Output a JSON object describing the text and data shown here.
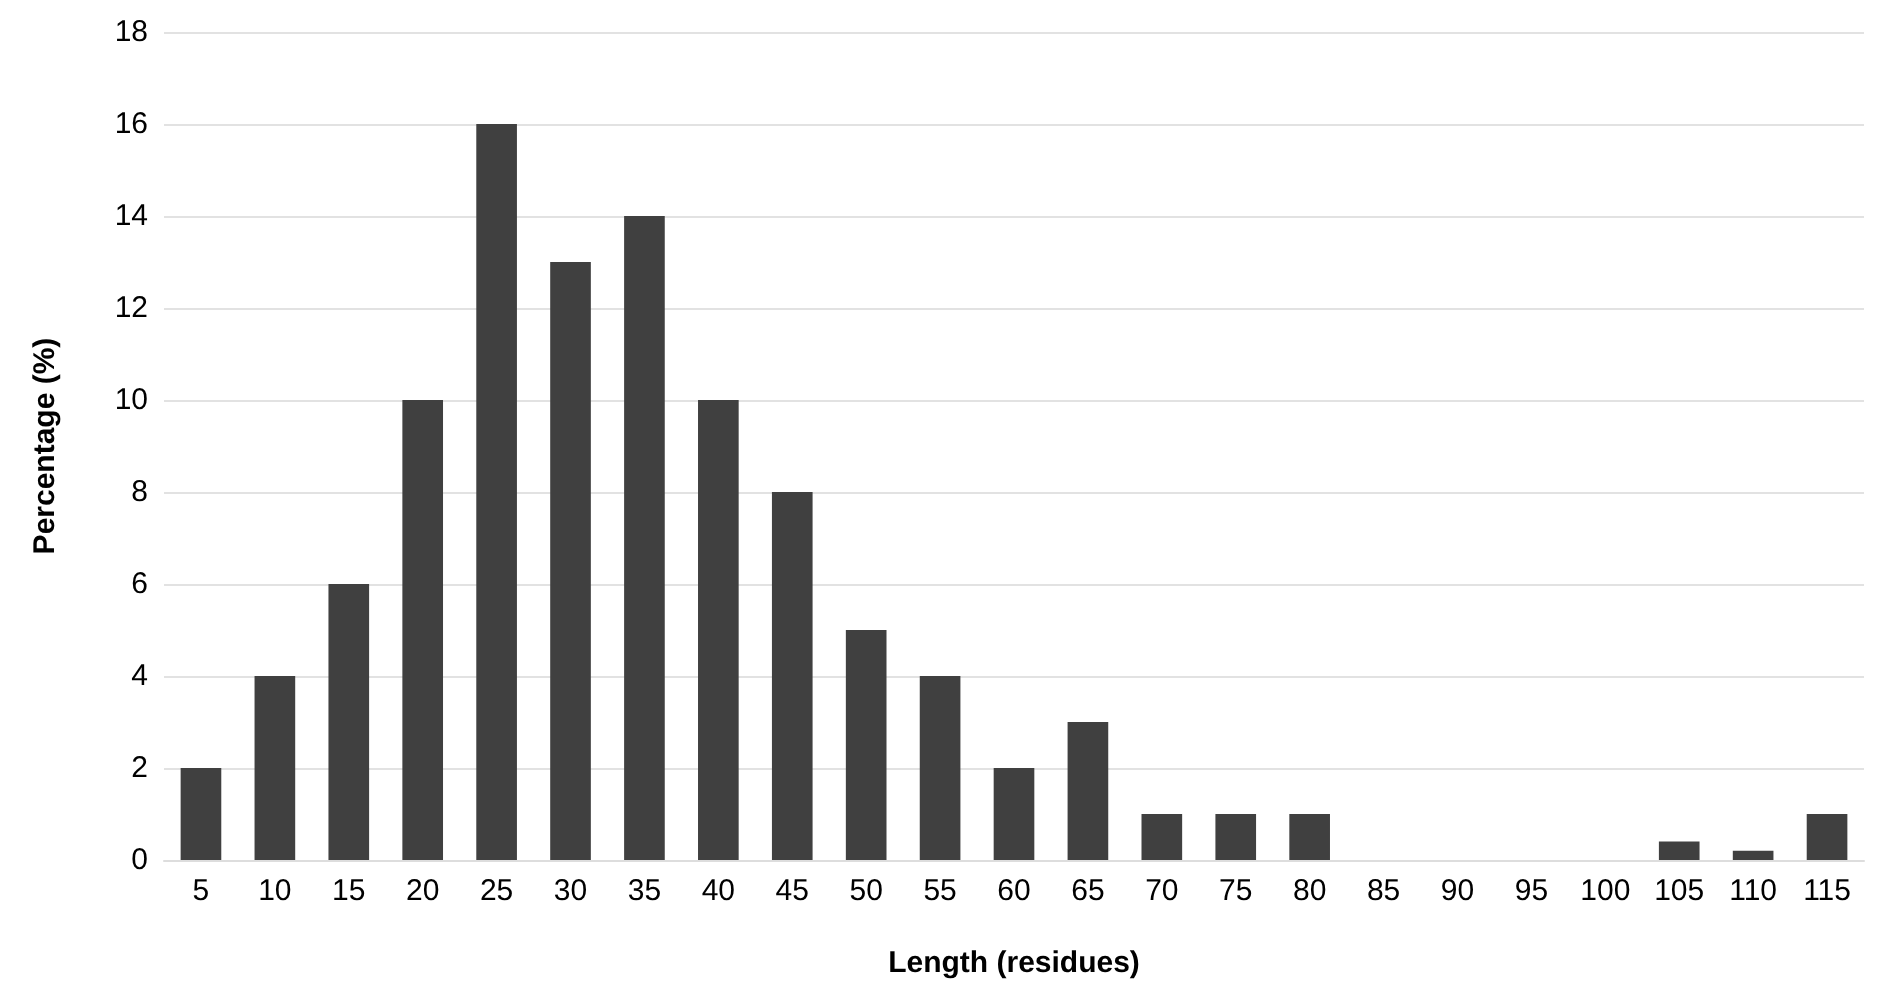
{
  "chart_data": {
    "type": "bar",
    "xlabel": "Length (residues)",
    "ylabel": "Percentage (%)",
    "categories": [
      "5",
      "10",
      "15",
      "20",
      "25",
      "30",
      "35",
      "40",
      "45",
      "50",
      "55",
      "60",
      "65",
      "70",
      "75",
      "80",
      "85",
      "90",
      "95",
      "100",
      "105",
      "110",
      "115"
    ],
    "values": [
      2,
      4,
      6,
      10,
      16,
      13,
      14,
      10,
      8,
      5,
      4,
      2,
      3,
      1,
      1,
      1,
      0,
      0,
      0,
      0,
      0.4,
      0.2,
      1
    ],
    "color": "#404040",
    "ylim": [
      0,
      18
    ],
    "yticks": [
      0,
      2,
      4,
      6,
      8,
      10,
      12,
      14,
      16,
      18
    ],
    "grid": "y"
  }
}
